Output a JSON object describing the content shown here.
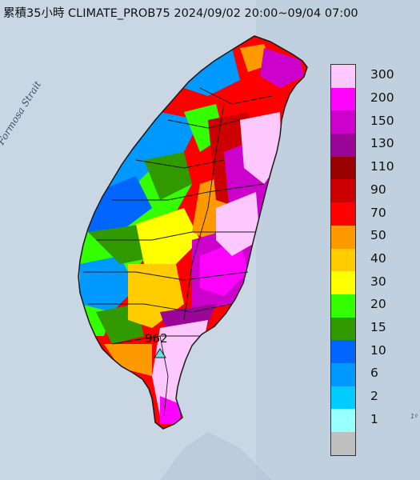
{
  "title": "累積35小時 CLIMATE_PROB75 2024/09/02 20:00~09/04 07:00",
  "map": {
    "sea_label": "Formosa Strait",
    "station_value": "962",
    "edge_mark": "1º",
    "colors": {
      "sea": "#c9d6e3",
      "land_base": "#ffffff",
      "border": "#1a1a1a"
    }
  },
  "legend": {
    "items": [
      {
        "label": "300",
        "color": "#fdc8fd"
      },
      {
        "label": "200",
        "color": "#fe03fe"
      },
      {
        "label": "150",
        "color": "#cc02cc"
      },
      {
        "label": "130",
        "color": "#9a0698"
      },
      {
        "label": "110",
        "color": "#990000"
      },
      {
        "label": "90",
        "color": "#cc0000"
      },
      {
        "label": "70",
        "color": "#ff0000"
      },
      {
        "label": "50",
        "color": "#ff9900"
      },
      {
        "label": "40",
        "color": "#ffcc00"
      },
      {
        "label": "30",
        "color": "#ffff00"
      },
      {
        "label": "20",
        "color": "#33ff00"
      },
      {
        "label": "15",
        "color": "#319a00"
      },
      {
        "label": "10",
        "color": "#0066ff"
      },
      {
        "label": "6",
        "color": "#0099ff"
      },
      {
        "label": "2",
        "color": "#00ccff"
      },
      {
        "label": "1",
        "color": "#99ffff"
      },
      {
        "label": "",
        "color": "#c0c0c0"
      }
    ]
  }
}
